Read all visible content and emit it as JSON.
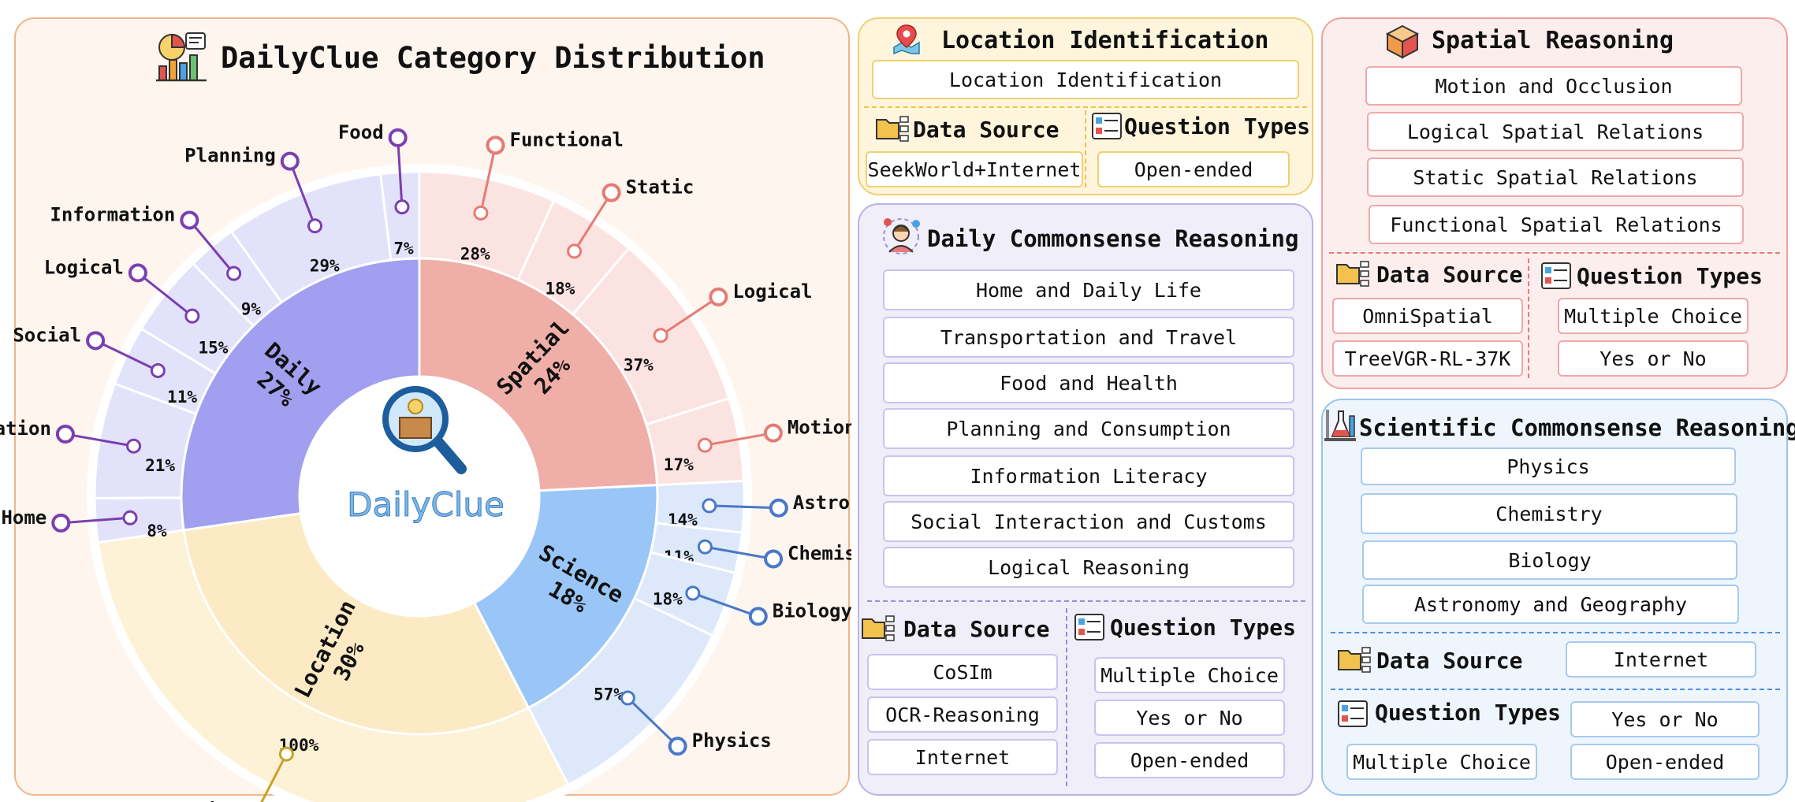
{
  "chart_data": {
    "type": "sunburst",
    "title": "DailyClue Category Distribution",
    "center_label": "DailyClue",
    "colors": {
      "spatial": "#f0aea8",
      "science": "#99c6f7",
      "location": "#fbeac4",
      "daily": "#a29ff0"
    },
    "categories": [
      {
        "key": "spatial",
        "name": "Spatial",
        "value": 24,
        "label": "24%",
        "color": "#f0aea8",
        "light": "#fbe3e1",
        "accent": "#e57b73",
        "children": [
          {
            "name": "Functional",
            "value": 28,
            "label": "28%"
          },
          {
            "name": "Static",
            "value": 18,
            "label": "18%"
          },
          {
            "name": "Logical",
            "value": 37,
            "label": "37%"
          },
          {
            "name": "Motion",
            "value": 17,
            "label": "17%"
          }
        ]
      },
      {
        "key": "science",
        "name": "Science",
        "value": 18,
        "label": "18%",
        "color": "#99c6f7",
        "light": "#dde9fb",
        "accent": "#4a78c8",
        "children": [
          {
            "name": "Astronomy",
            "value": 14,
            "label": "14%"
          },
          {
            "name": "Chemistry",
            "value": 11,
            "label": "11%"
          },
          {
            "name": "Biology",
            "value": 18,
            "label": "18%"
          },
          {
            "name": "Physics",
            "value": 57,
            "label": "57%"
          }
        ]
      },
      {
        "key": "location",
        "name": "Location",
        "value": 30,
        "label": "30%",
        "color": "#fbeac4",
        "light": "#fdf1d6",
        "accent": "#c9a227",
        "children": [
          {
            "name": "Location",
            "value": 100,
            "label": "100%"
          }
        ]
      },
      {
        "key": "daily",
        "name": "Daily",
        "value": 27,
        "label": "27%",
        "color": "#a29ff0",
        "light": "#e3e2fb",
        "accent": "#7b3fb0",
        "children": [
          {
            "name": "Home",
            "value": 8,
            "label": "8%"
          },
          {
            "name": "Transportation",
            "value": 21,
            "label": "21%"
          },
          {
            "name": "Social",
            "value": 11,
            "label": "11%"
          },
          {
            "name": "Logical",
            "value": 15,
            "label": "15%"
          },
          {
            "name": "Information",
            "value": 9,
            "label": "9%"
          },
          {
            "name": "Planning",
            "value": 29,
            "label": "29%"
          },
          {
            "name": "Food",
            "value": 7,
            "label": "7%"
          }
        ]
      }
    ]
  },
  "location_panel": {
    "title": "Location Identification",
    "item": "Location Identification",
    "data_source_label": "Data Source",
    "question_types_label": "Question Types",
    "sources": [
      "SeekWorld+Internet"
    ],
    "types": [
      "Open-ended"
    ]
  },
  "daily_panel": {
    "title": "Daily Commonsense Reasoning",
    "items": [
      "Home and Daily Life",
      "Transportation and Travel",
      "Food and Health",
      "Planning and Consumption",
      "Information Literacy",
      "Social Interaction and Customs",
      "Logical Reasoning"
    ],
    "data_source_label": "Data Source",
    "question_types_label": "Question Types",
    "sources": [
      "CoSIm",
      "OCR-Reasoning",
      "Internet"
    ],
    "types": [
      "Multiple Choice",
      "Yes or No",
      "Open-ended"
    ]
  },
  "spatial_panel": {
    "title": "Spatial Reasoning",
    "items": [
      "Motion and Occlusion",
      "Logical Spatial Relations",
      "Static Spatial Relations",
      "Functional Spatial Relations"
    ],
    "data_source_label": "Data Source",
    "question_types_label": "Question Types",
    "sources": [
      "OmniSpatial",
      "TreeVGR-RL-37K"
    ],
    "types": [
      "Multiple Choice",
      "Yes or No"
    ]
  },
  "science_panel": {
    "title": "Scientific Commonsense Reasoning",
    "items": [
      "Physics",
      "Chemistry",
      "Biology",
      "Astronomy and Geography"
    ],
    "data_source_label": "Data Source",
    "question_types_label": "Question Types",
    "sources": [
      "Internet"
    ],
    "types": [
      "Yes or No",
      "Multiple Choice",
      "Open-ended"
    ]
  }
}
